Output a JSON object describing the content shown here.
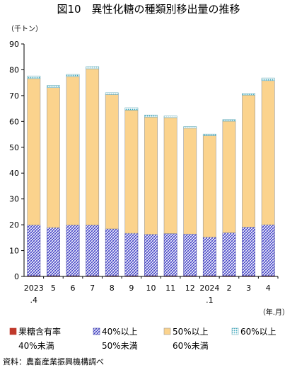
{
  "chart_data": {
    "type": "bar",
    "stacked": true,
    "title": "図10　異性化糖の種類別移出量の推移",
    "ylabel": "（千トン）",
    "xunit": "（年.月）",
    "ylim": [
      0,
      90
    ],
    "yticks": [
      "0",
      "10",
      "20",
      "30",
      "40",
      "50",
      "60",
      "70",
      "80",
      "90"
    ],
    "grid": false,
    "legend_position": "bottom",
    "categories": [
      {
        "line1": "2023",
        "line2": ".4"
      },
      {
        "line1": "5",
        "line2": ""
      },
      {
        "line1": "6",
        "line2": ""
      },
      {
        "line1": "7",
        "line2": ""
      },
      {
        "line1": "8",
        "line2": ""
      },
      {
        "line1": "9",
        "line2": ""
      },
      {
        "line1": "10",
        "line2": ""
      },
      {
        "line1": "11",
        "line2": ""
      },
      {
        "line1": "12",
        "line2": ""
      },
      {
        "line1": "2024",
        "line2": ".1"
      },
      {
        "line1": "2",
        "line2": ""
      },
      {
        "line1": "3",
        "line2": ""
      },
      {
        "line1": "4",
        "line2": ""
      }
    ],
    "series": [
      {
        "name": "果糖含有率",
        "name_line2": "40%未満",
        "color": "#c0392b",
        "pattern": "solid",
        "values": [
          0.3,
          0.3,
          0.3,
          0.3,
          0.3,
          0.3,
          0.3,
          0.3,
          0.3,
          0.3,
          0.3,
          0.3,
          0.3
        ]
      },
      {
        "name": "40%以上",
        "name_line2": "50%未満",
        "color": "#6b6bd6",
        "pattern": "hatch",
        "values": [
          19.6,
          18.6,
          19.6,
          19.6,
          18.1,
          16.4,
          16.0,
          16.3,
          16.1,
          14.9,
          16.6,
          18.8,
          19.7
        ]
      },
      {
        "name": "50%以上",
        "name_line2": "60%未満",
        "color": "#fbd38d",
        "pattern": "solid",
        "values": [
          56.7,
          54.2,
          57.5,
          60.5,
          52.0,
          47.7,
          45.4,
          44.9,
          41.0,
          39.3,
          43.2,
          51.1,
          55.8
        ]
      },
      {
        "name": "60%以上",
        "name_line2": "",
        "color": "#7ecbd8",
        "pattern": "dots",
        "values": [
          1.0,
          0.8,
          0.8,
          0.8,
          0.7,
          0.9,
          0.8,
          0.6,
          0.6,
          0.6,
          0.6,
          0.7,
          1.0
        ]
      }
    ]
  },
  "source": "資料：農畜産業振興機構調べ"
}
